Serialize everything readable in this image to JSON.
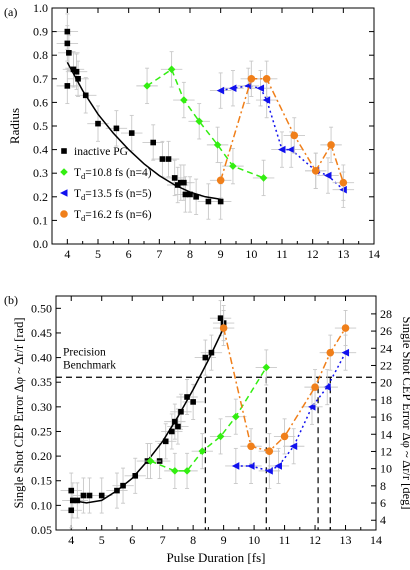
{
  "chart_data": [
    {
      "panel": "(a)",
      "type": "scatter",
      "ylabel": "Radius",
      "xlim": [
        3.5,
        14
      ],
      "ylim": [
        0.0,
        1.0
      ],
      "xticks": [
        4,
        5,
        6,
        7,
        8,
        9,
        10,
        11,
        12,
        13,
        14
      ],
      "yticks": [
        0.0,
        0.1,
        0.2,
        0.3,
        0.4,
        0.5,
        0.6,
        0.7,
        0.8,
        0.9,
        1.0
      ],
      "legend_position": "bottom-left",
      "series": [
        {
          "name": "inactive PG",
          "legend_main": "inactive PG",
          "legend_sub": "",
          "legend_rest": "",
          "color": "#000000",
          "marker": "square",
          "line": "solid",
          "x": [
            4.0,
            4.0,
            4.0,
            4.05,
            4.2,
            4.3,
            4.35,
            4.6,
            5.0,
            5.6,
            6.1,
            6.8,
            7.1,
            7.3,
            7.5,
            7.6,
            7.7,
            7.8,
            7.85,
            8.0,
            8.2,
            8.6,
            9.0
          ],
          "y": [
            0.9,
            0.85,
            0.67,
            0.81,
            0.74,
            0.73,
            0.7,
            0.63,
            0.51,
            0.49,
            0.47,
            0.43,
            0.36,
            0.36,
            0.28,
            0.25,
            0.26,
            0.26,
            0.21,
            0.21,
            0.2,
            0.18,
            0.18
          ],
          "fit_x": [
            4.0,
            4.5,
            5.0,
            5.5,
            6.0,
            6.5,
            7.0,
            7.5,
            8.0,
            8.5,
            9.0
          ],
          "fit_y": [
            0.77,
            0.65,
            0.55,
            0.47,
            0.4,
            0.34,
            0.29,
            0.25,
            0.22,
            0.2,
            0.19
          ]
        },
        {
          "name": "Td=10.8 fs (n=4)",
          "legend_main": "T",
          "legend_sub": "d",
          "legend_rest": "=10.8 fs (n=4)",
          "color": "#33ee11",
          "marker": "diamond",
          "line": "dashed",
          "x": [
            6.6,
            7.4,
            7.8,
            8.3,
            8.9,
            9.4,
            10.4
          ],
          "y": [
            0.67,
            0.74,
            0.61,
            0.52,
            0.42,
            0.33,
            0.28
          ]
        },
        {
          "name": "Td=13.5 fs (n=5)",
          "legend_main": "T",
          "legend_sub": "d",
          "legend_rest": "=13.5 fs (n=5)",
          "color": "#1111ee",
          "marker": "triangle-left",
          "line": "dotted",
          "x": [
            9.0,
            9.4,
            9.9,
            10.3,
            10.5,
            11.0,
            11.3,
            12.1,
            12.5,
            13.0
          ],
          "y": [
            0.65,
            0.66,
            0.67,
            0.66,
            0.61,
            0.4,
            0.4,
            0.31,
            0.29,
            0.23
          ]
        },
        {
          "name": "Td=16.2 fs (n=6)",
          "legend_main": "T",
          "legend_sub": "d",
          "legend_rest": "=16.2 fs (n=6)",
          "color": "#f07f1a",
          "marker": "circle",
          "line": "dashdot",
          "x": [
            9.0,
            10.0,
            10.5,
            11.4,
            12.1,
            12.6,
            13.0
          ],
          "y": [
            0.27,
            0.7,
            0.7,
            0.46,
            0.31,
            0.42,
            0.26
          ]
        }
      ]
    },
    {
      "panel": "(b)",
      "type": "scatter",
      "xlabel": "Pulse Duration [fs]",
      "ylabel": "Single Shot CEP Error Δφ ~ Δr/r [rad]",
      "y2label": "Single Shot CEP Error Δφ ~ Δr/r [deg]",
      "xlim": [
        3.5,
        14
      ],
      "ylim": [
        0.05,
        0.525
      ],
      "y2lim": [
        2.865,
        30.08
      ],
      "xticks": [
        4,
        5,
        6,
        7,
        8,
        9,
        10,
        11,
        12,
        13,
        14
      ],
      "yticks": [
        0.05,
        0.1,
        0.15,
        0.2,
        0.25,
        0.3,
        0.35,
        0.4,
        0.45,
        0.5
      ],
      "y2ticks": [
        4,
        6,
        8,
        10,
        12,
        14,
        16,
        18,
        20,
        22,
        24,
        26,
        28
      ],
      "annotation": [
        "Precision",
        "Benchmark"
      ],
      "benchmark_y": 0.36,
      "benchmark_crossings_x": [
        8.4,
        10.4,
        12.1,
        12.5
      ],
      "series": [
        {
          "name": "inactive PG",
          "color": "#000000",
          "marker": "square",
          "line": "solid",
          "x": [
            4.0,
            4.0,
            4.05,
            4.2,
            4.4,
            4.6,
            5.0,
            5.5,
            5.7,
            6.1,
            6.5,
            6.9,
            7.1,
            7.3,
            7.4,
            7.5,
            7.6,
            7.8,
            8.0,
            8.4,
            8.6,
            8.9,
            9.0
          ],
          "y": [
            0.09,
            0.13,
            0.11,
            0.11,
            0.12,
            0.12,
            0.12,
            0.13,
            0.14,
            0.16,
            0.19,
            0.19,
            0.23,
            0.25,
            0.27,
            0.26,
            0.29,
            0.32,
            0.31,
            0.4,
            0.41,
            0.48,
            0.47
          ],
          "fit_x": [
            4.0,
            4.5,
            5.0,
            5.5,
            6.0,
            6.5,
            7.0,
            7.5,
            8.0,
            8.5,
            9.0
          ],
          "fit_y": [
            0.11,
            0.105,
            0.11,
            0.13,
            0.155,
            0.19,
            0.23,
            0.28,
            0.335,
            0.395,
            0.46
          ]
        },
        {
          "name": "Td=10.8 fs (n=4)",
          "color": "#33ee11",
          "marker": "diamond",
          "line": "dashed",
          "x": [
            6.6,
            7.4,
            7.8,
            8.3,
            8.9,
            9.4,
            10.4
          ],
          "y": [
            0.19,
            0.17,
            0.17,
            0.21,
            0.24,
            0.28,
            0.38
          ]
        },
        {
          "name": "Td=13.5 fs (n=5)",
          "color": "#1111ee",
          "marker": "triangle-left",
          "line": "dotted",
          "x": [
            9.4,
            9.9,
            10.5,
            10.8,
            11.3,
            11.9,
            12.4,
            13.0
          ],
          "y": [
            0.18,
            0.18,
            0.17,
            0.18,
            0.22,
            0.3,
            0.34,
            0.41
          ]
        },
        {
          "name": "Td=16.2 fs (n=6)",
          "color": "#f07f1a",
          "marker": "circle",
          "line": "dashdot",
          "x": [
            9.0,
            9.9,
            10.5,
            11.0,
            12.0,
            12.5,
            13.0
          ],
          "y": [
            0.46,
            0.22,
            0.21,
            0.24,
            0.34,
            0.41,
            0.46
          ]
        }
      ]
    }
  ]
}
